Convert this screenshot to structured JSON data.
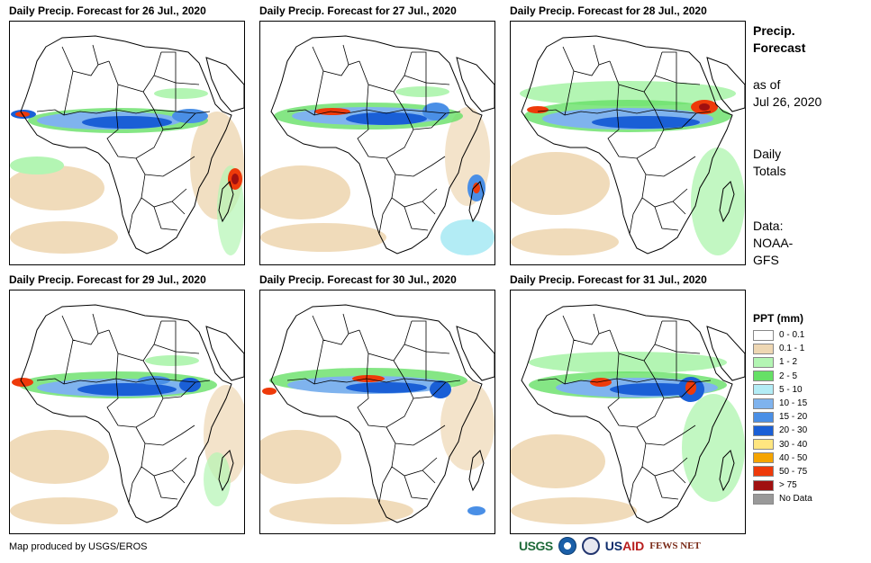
{
  "panels": [
    {
      "title": "Daily Precip. Forecast for 26 Jul., 2020"
    },
    {
      "title": "Daily Precip. Forecast for 27 Jul., 2020"
    },
    {
      "title": "Daily Precip. Forecast for 28 Jul., 2020"
    },
    {
      "title": "Daily Precip. Forecast for 29 Jul., 2020"
    },
    {
      "title": "Daily Precip. Forecast for 30 Jul., 2020"
    },
    {
      "title": "Daily Precip. Forecast for 31 Jul., 2020"
    }
  ],
  "side": {
    "title_line1": "Precip.",
    "title_line2": "Forecast",
    "asof_line1": "as of",
    "asof_line2": "Jul 26, 2020",
    "daily_line1": "Daily",
    "daily_line2": "Totals",
    "data_line1": "Data:",
    "data_line2": "NOAA-",
    "data_line3": "GFS"
  },
  "legend": {
    "title": "PPT (mm)",
    "items": [
      {
        "label": "0 - 0.1",
        "color": "#ffffff"
      },
      {
        "label": "0.1 - 1",
        "color": "#eed7b3"
      },
      {
        "label": "1 - 2",
        "color": "#b3f5b3"
      },
      {
        "label": "2 - 5",
        "color": "#66e066"
      },
      {
        "label": "5 - 10",
        "color": "#b3ecf5"
      },
      {
        "label": "10 - 15",
        "color": "#7fb3ee"
      },
      {
        "label": "15 - 20",
        "color": "#4a8fe6"
      },
      {
        "label": "20 - 30",
        "color": "#1a5fd6"
      },
      {
        "label": "30 - 40",
        "color": "#ffe680"
      },
      {
        "label": "40 - 50",
        "color": "#f5a400"
      },
      {
        "label": "50 - 75",
        "color": "#ee3a0a"
      },
      {
        "label": "> 75",
        "color": "#a01010"
      },
      {
        "label": "No Data",
        "color": "#999999"
      }
    ]
  },
  "credit": "Map produced by USGS/EROS",
  "logos": {
    "usgs": "USGS",
    "usaid_a": "US",
    "usaid_b": "AID",
    "fews": "FEWS NET"
  },
  "colors": {
    "tan": "#eed7b3",
    "lightgreen": "#b3f5b3",
    "green": "#66e066",
    "cyan": "#b3ecf5",
    "blue1": "#7fb3ee",
    "blue2": "#4a8fe6",
    "blue3": "#1a5fd6",
    "orange": "#f5a400",
    "red": "#ee3a0a",
    "darkred": "#a01010"
  }
}
